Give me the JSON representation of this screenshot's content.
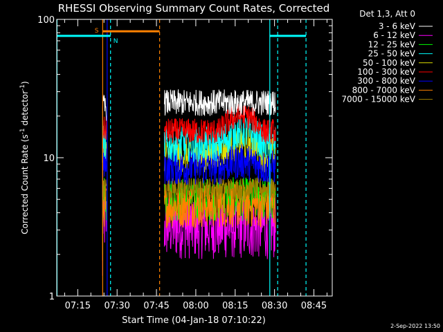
{
  "chart_data": {
    "type": "line",
    "title": "RHESSI Observing Summary Count Rates, Corrected",
    "xlabel": "Start Time (04-Jan-18 07:10:22)",
    "ylabel": "Corrected Count Rate (s⁻¹ detector⁻¹)",
    "ylabel_main": "Corrected Count Rate (s",
    "ylabel_sup1": "-1",
    "ylabel_mid": " detector",
    "ylabel_sup2": "-1",
    "ylabel_end": ")",
    "yscale": "log",
    "ylim": [
      1,
      100
    ],
    "xlim_minutes": [
      -3,
      102
    ],
    "x_ticks": [
      {
        "minute": 5,
        "label": "07:15"
      },
      {
        "minute": 20,
        "label": "07:30"
      },
      {
        "minute": 35,
        "label": "07:45"
      },
      {
        "minute": 50,
        "label": "08:00"
      },
      {
        "minute": 65,
        "label": "08:15"
      },
      {
        "minute": 80,
        "label": "08:30"
      },
      {
        "minute": 95,
        "label": "08:45"
      }
    ],
    "y_ticks": [
      {
        "value": 1,
        "label": "1"
      },
      {
        "value": 10,
        "label": "10"
      },
      {
        "value": 100,
        "label": "100"
      }
    ],
    "legend_header": "Det 1,3, Att 0",
    "legend_position": "right",
    "series": [
      {
        "name": "3 - 6 keV",
        "color": "#ffffff",
        "base": 25,
        "bump": 1,
        "noise": 0.06,
        "early": 23
      },
      {
        "name": "6 - 12 keV",
        "color": "#ff00ff",
        "base": 3.2,
        "bump": 1,
        "noise": 0.15,
        "early": 3.5
      },
      {
        "name": "12 - 25 keV",
        "color": "#00ff00",
        "base": 5,
        "bump": 1,
        "noise": 0.1,
        "early": 5
      },
      {
        "name": "25 - 50 keV",
        "color": "#00ffff",
        "base": 12.5,
        "bump": 1.25,
        "noise": 0.08,
        "early": 13
      },
      {
        "name": "50 - 100 keV",
        "color": "#e0e000",
        "base": 10.5,
        "bump": 1.2,
        "noise": 0.08,
        "early": 11
      },
      {
        "name": "100 - 300 keV",
        "color": "#ff0000",
        "base": 15.5,
        "bump": 1.3,
        "noise": 0.06,
        "early": 16
      },
      {
        "name": "300 - 800 keV",
        "color": "#0000ff",
        "base": 8.5,
        "bump": 1.1,
        "noise": 0.08,
        "early": 9
      },
      {
        "name": "800 - 7000 keV",
        "color": "#ff8000",
        "base": 4.5,
        "bump": 1,
        "noise": 0.1,
        "early": 4.5
      },
      {
        "name": "7000 - 15000 keV",
        "color": "#a08000",
        "base": 6,
        "bump": 1,
        "noise": 0.05,
        "early": 6
      }
    ],
    "data_segments_minutes": [
      [
        14.5,
        16.0
      ],
      [
        38.0,
        80.5
      ]
    ],
    "bump_window_minutes": [
      59,
      76
    ],
    "annotations": [
      {
        "type": "vline",
        "minute": 14.5,
        "color": "#ff8000",
        "style": "solid"
      },
      {
        "type": "vline",
        "minute": 16.2,
        "color": "#0000ff",
        "style": "solid"
      },
      {
        "type": "vline",
        "minute": 17.5,
        "color": "#00ffff",
        "style": "dashed"
      },
      {
        "type": "vline",
        "minute": 36.2,
        "color": "#ff8000",
        "style": "dashed"
      },
      {
        "type": "vline",
        "minute": -2.9,
        "color": "#00ffff",
        "style": "solid"
      },
      {
        "type": "vline",
        "minute": 78.2,
        "color": "#00ffff",
        "style": "solid"
      },
      {
        "type": "vline",
        "minute": 81.2,
        "color": "#00ffff",
        "style": "dashed"
      },
      {
        "type": "vline",
        "minute": 92.0,
        "color": "#00ffff",
        "style": "dashed"
      },
      {
        "type": "bar",
        "from": 14.6,
        "to": 36.2,
        "value": 82,
        "color": "#ff8000",
        "label": "S"
      },
      {
        "type": "bar",
        "from": -3,
        "to": 17.5,
        "value": 76,
        "color": "#00ffff",
        "label": "N"
      },
      {
        "type": "bar",
        "from": 78.2,
        "to": 92.0,
        "value": 76,
        "color": "#00ffff",
        "label": ""
      }
    ],
    "footer_timestamp": "2-Sep-2022 13:50"
  }
}
